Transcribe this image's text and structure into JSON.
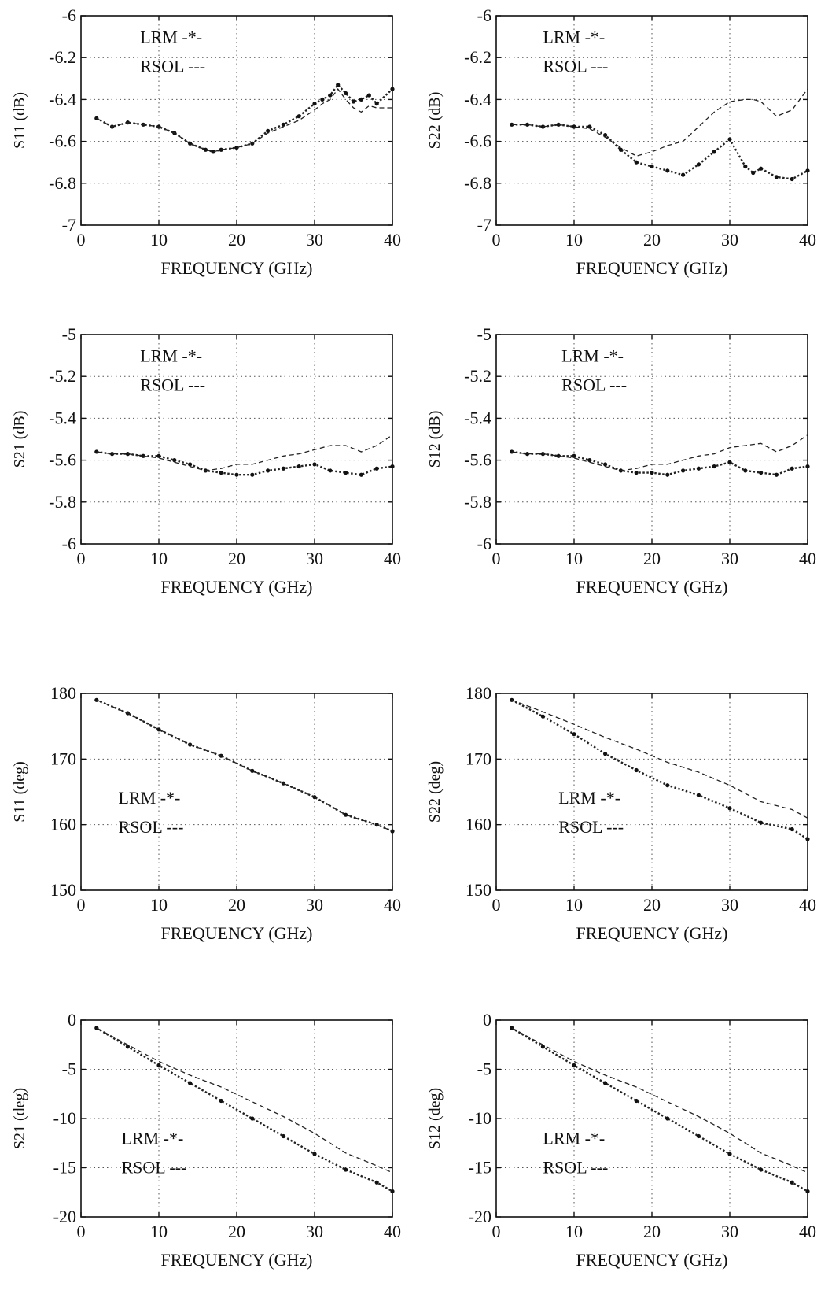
{
  "chart_data": [
    {
      "type": "line",
      "xlabel": "FREQUENCY (GHz)",
      "ylabel": "S11 (dB)",
      "xlim": [
        0,
        40
      ],
      "ylim": [
        -7,
        -6
      ],
      "xticks": [
        "0",
        "10",
        "20",
        "30",
        "40"
      ],
      "yticks": [
        "-7",
        "-6.8",
        "-6.6",
        "-6.4",
        "-6.2",
        "-6"
      ],
      "grid": true,
      "legend_entries": [
        "LRM -*-",
        "RSOL ---"
      ],
      "legend_placement": "top-left",
      "x": [
        2,
        4,
        6,
        8,
        10,
        12,
        14,
        16,
        17,
        18,
        20,
        22,
        24,
        26,
        28,
        30,
        31,
        32,
        33,
        34,
        35,
        36,
        37,
        38,
        40
      ],
      "series": [
        {
          "name": "LRM -*-",
          "values": [
            -6.49,
            -6.53,
            -6.51,
            -6.52,
            -6.53,
            -6.56,
            -6.61,
            -6.64,
            -6.65,
            -6.64,
            -6.63,
            -6.61,
            -6.55,
            -6.52,
            -6.48,
            -6.42,
            -6.4,
            -6.38,
            -6.33,
            -6.37,
            -6.41,
            -6.4,
            -6.38,
            -6.42,
            -6.35
          ]
        },
        {
          "name": "RSOL ---",
          "values": [
            -6.49,
            -6.53,
            -6.51,
            -6.52,
            -6.53,
            -6.56,
            -6.61,
            -6.64,
            -6.65,
            -6.64,
            -6.63,
            -6.61,
            -6.56,
            -6.53,
            -6.5,
            -6.45,
            -6.42,
            -6.4,
            -6.35,
            -6.4,
            -6.44,
            -6.46,
            -6.43,
            -6.44,
            -6.44
          ]
        }
      ]
    },
    {
      "type": "line",
      "xlabel": "FREQUENCY (GHz)",
      "ylabel": "S22 (dB)",
      "xlim": [
        0,
        40
      ],
      "ylim": [
        -7,
        -6
      ],
      "xticks": [
        "0",
        "10",
        "20",
        "30",
        "40"
      ],
      "yticks": [
        "-7",
        "-6.8",
        "-6.6",
        "-6.4",
        "-6.2",
        "-6"
      ],
      "grid": true,
      "legend_entries": [
        "LRM -*-",
        "RSOL ---"
      ],
      "legend_placement": "top-center",
      "x": [
        2,
        4,
        6,
        8,
        10,
        12,
        14,
        16,
        18,
        20,
        22,
        24,
        26,
        28,
        30,
        32,
        33,
        34,
        36,
        38,
        40
      ],
      "series": [
        {
          "name": "LRM -*-",
          "values": [
            -6.52,
            -6.52,
            -6.53,
            -6.52,
            -6.53,
            -6.53,
            -6.57,
            -6.64,
            -6.7,
            -6.72,
            -6.74,
            -6.76,
            -6.71,
            -6.65,
            -6.59,
            -6.72,
            -6.75,
            -6.73,
            -6.77,
            -6.78,
            -6.74
          ]
        },
        {
          "name": "RSOL ---",
          "values": [
            -6.52,
            -6.52,
            -6.53,
            -6.52,
            -6.53,
            -6.54,
            -6.58,
            -6.63,
            -6.67,
            -6.65,
            -6.62,
            -6.6,
            -6.53,
            -6.46,
            -6.41,
            -6.4,
            -6.4,
            -6.41,
            -6.48,
            -6.45,
            -6.35
          ]
        }
      ]
    },
    {
      "type": "line",
      "xlabel": "FREQUENCY (GHz)",
      "ylabel": "S21 (dB)",
      "xlim": [
        0,
        40
      ],
      "ylim": [
        -6,
        -5
      ],
      "xticks": [
        "0",
        "10",
        "20",
        "30",
        "40"
      ],
      "yticks": [
        "-6",
        "-5.8",
        "-5.6",
        "-5.4",
        "-5.2",
        "-5"
      ],
      "grid": true,
      "legend_entries": [
        "LRM -*-",
        "RSOL ---"
      ],
      "legend_placement": "top-left",
      "x": [
        2,
        4,
        6,
        8,
        10,
        12,
        14,
        16,
        18,
        20,
        22,
        24,
        26,
        28,
        30,
        32,
        34,
        36,
        38,
        40
      ],
      "series": [
        {
          "name": "LRM -*-",
          "values": [
            -5.56,
            -5.57,
            -5.57,
            -5.58,
            -5.58,
            -5.6,
            -5.62,
            -5.65,
            -5.66,
            -5.67,
            -5.67,
            -5.65,
            -5.64,
            -5.63,
            -5.62,
            -5.65,
            -5.66,
            -5.67,
            -5.64,
            -5.63
          ]
        },
        {
          "name": "RSOL ---",
          "values": [
            -5.56,
            -5.57,
            -5.57,
            -5.58,
            -5.59,
            -5.61,
            -5.63,
            -5.65,
            -5.64,
            -5.62,
            -5.62,
            -5.6,
            -5.58,
            -5.57,
            -5.55,
            -5.53,
            -5.53,
            -5.56,
            -5.53,
            -5.48
          ]
        }
      ]
    },
    {
      "type": "line",
      "xlabel": "FREQUENCY (GHz)",
      "ylabel": "S12 (dB)",
      "xlim": [
        0,
        40
      ],
      "ylim": [
        -6,
        -5
      ],
      "xticks": [
        "0",
        "10",
        "20",
        "30",
        "40"
      ],
      "yticks": [
        "-6",
        "-5.8",
        "-5.6",
        "-5.4",
        "-5.2",
        "-5"
      ],
      "grid": true,
      "legend_entries": [
        "LRM -*-",
        "RSOL ---"
      ],
      "legend_placement": "top-center",
      "x": [
        2,
        4,
        6,
        8,
        10,
        12,
        14,
        16,
        18,
        20,
        22,
        24,
        26,
        28,
        30,
        32,
        34,
        36,
        38,
        40
      ],
      "series": [
        {
          "name": "LRM -*-",
          "values": [
            -5.56,
            -5.57,
            -5.57,
            -5.58,
            -5.58,
            -5.6,
            -5.62,
            -5.65,
            -5.66,
            -5.66,
            -5.67,
            -5.65,
            -5.64,
            -5.63,
            -5.61,
            -5.65,
            -5.66,
            -5.67,
            -5.64,
            -5.63
          ]
        },
        {
          "name": "RSOL ---",
          "values": [
            -5.56,
            -5.57,
            -5.57,
            -5.58,
            -5.59,
            -5.61,
            -5.63,
            -5.65,
            -5.64,
            -5.62,
            -5.62,
            -5.6,
            -5.58,
            -5.57,
            -5.54,
            -5.53,
            -5.52,
            -5.56,
            -5.53,
            -5.48
          ]
        }
      ]
    },
    {
      "type": "line",
      "xlabel": "FREQUENCY (GHz)",
      "ylabel": "S11 (deg)",
      "xlim": [
        0,
        40
      ],
      "ylim": [
        150,
        180
      ],
      "xticks": [
        "0",
        "10",
        "20",
        "30",
        "40"
      ],
      "yticks": [
        "150",
        "160",
        "170",
        "180"
      ],
      "grid": true,
      "legend_entries": [
        "LRM -*-",
        "RSOL ---"
      ],
      "legend_placement": "left",
      "x": [
        2,
        6,
        10,
        14,
        18,
        22,
        26,
        30,
        34,
        38,
        40
      ],
      "series": [
        {
          "name": "LRM -*-",
          "values": [
            179,
            177,
            174.5,
            172.2,
            170.5,
            168.2,
            166.3,
            164.2,
            161.5,
            160,
            159
          ]
        },
        {
          "name": "RSOL ---",
          "values": [
            179,
            177,
            174.5,
            172.2,
            170.5,
            168.2,
            166.3,
            164.2,
            161.5,
            160,
            159
          ]
        }
      ]
    },
    {
      "type": "line",
      "xlabel": "FREQUENCY (GHz)",
      "ylabel": "S22 (deg)",
      "xlim": [
        0,
        40
      ],
      "ylim": [
        150,
        180
      ],
      "xticks": [
        "0",
        "10",
        "20",
        "30",
        "40"
      ],
      "yticks": [
        "150",
        "160",
        "170",
        "180"
      ],
      "grid": true,
      "legend_entries": [
        "LRM -*-",
        "RSOL ---"
      ],
      "legend_placement": "center",
      "x": [
        2,
        6,
        10,
        14,
        18,
        22,
        26,
        30,
        34,
        38,
        40
      ],
      "series": [
        {
          "name": "LRM -*-",
          "values": [
            179,
            176.5,
            173.8,
            170.8,
            168.3,
            166,
            164.5,
            162.5,
            160.3,
            159.3,
            157.8
          ]
        },
        {
          "name": "RSOL ---",
          "values": [
            179,
            177.2,
            175.3,
            173.3,
            171.5,
            169.5,
            168,
            166,
            163.5,
            162.3,
            161
          ]
        }
      ]
    },
    {
      "type": "line",
      "xlabel": "FREQUENCY (GHz)",
      "ylabel": "S21 (deg)",
      "xlim": [
        0,
        40
      ],
      "ylim": [
        -20,
        0
      ],
      "xticks": [
        "0",
        "10",
        "20",
        "30",
        "40"
      ],
      "yticks": [
        "-20",
        "-15",
        "-10",
        "-5",
        "0"
      ],
      "grid": true,
      "legend_entries": [
        "LRM -*-",
        "RSOL ---"
      ],
      "legend_placement": "bottom-left",
      "x": [
        2,
        6,
        10,
        14,
        18,
        22,
        26,
        30,
        34,
        38,
        40
      ],
      "series": [
        {
          "name": "LRM -*-",
          "values": [
            -0.8,
            -2.7,
            -4.6,
            -6.4,
            -8.2,
            -10,
            -11.8,
            -13.6,
            -15.2,
            -16.5,
            -17.4
          ]
        },
        {
          "name": "RSOL ---",
          "values": [
            -0.8,
            -2.5,
            -4.2,
            -5.6,
            -6.8,
            -8.3,
            -9.8,
            -11.5,
            -13.5,
            -14.8,
            -15.5
          ]
        }
      ]
    },
    {
      "type": "line",
      "xlabel": "FREQUENCY (GHz)",
      "ylabel": "S12 (deg)",
      "xlim": [
        0,
        40
      ],
      "ylim": [
        -20,
        0
      ],
      "xticks": [
        "0",
        "10",
        "20",
        "30",
        "40"
      ],
      "yticks": [
        "-20",
        "-15",
        "-10",
        "-5",
        "0"
      ],
      "grid": true,
      "legend_entries": [
        "LRM -*-",
        "RSOL ---"
      ],
      "legend_placement": "bottom-left",
      "x": [
        2,
        6,
        10,
        14,
        18,
        22,
        26,
        30,
        34,
        38,
        40
      ],
      "series": [
        {
          "name": "LRM -*-",
          "values": [
            -0.8,
            -2.7,
            -4.6,
            -6.4,
            -8.2,
            -10,
            -11.8,
            -13.6,
            -15.2,
            -16.5,
            -17.4
          ]
        },
        {
          "name": "RSOL ---",
          "values": [
            -0.8,
            -2.5,
            -4.2,
            -5.6,
            -6.8,
            -8.3,
            -9.8,
            -11.5,
            -13.5,
            -14.8,
            -15.5
          ]
        }
      ]
    }
  ]
}
